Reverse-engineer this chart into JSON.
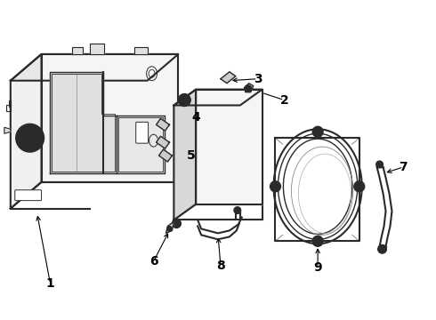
{
  "bg_color": "#ffffff",
  "line_color": "#2a2a2a",
  "label_color": "#000000",
  "label_fontsize": 10,
  "fig_width": 4.9,
  "fig_height": 3.6,
  "dpi": 100
}
